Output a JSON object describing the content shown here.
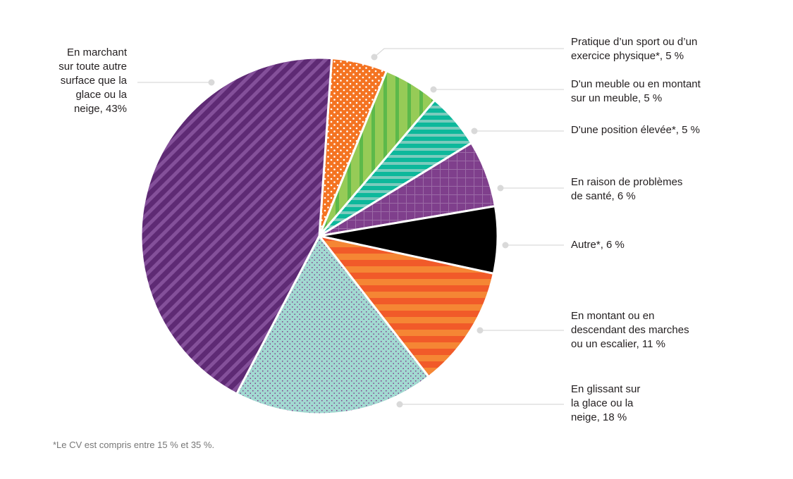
{
  "chart_data": {
    "type": "pie",
    "start_angle_deg": 4,
    "direction": "clockwise",
    "slices": [
      {
        "label": "Pratique d’un sport ou d’un\nexercice physique*, 5 %",
        "value": 5,
        "color": "#f47321",
        "pattern": "dots-white"
      },
      {
        "label": "D'un meuble ou en montant\nsur un meuble, 5 %",
        "value": 5,
        "color": "#96cb57",
        "pattern": "vertical-stripes",
        "color2": "#5cb94a"
      },
      {
        "label": "D'une position élevée*, 5 %",
        "value": 5,
        "color": "#0db89b",
        "pattern": "horizontal-stripes",
        "color2": "#7acbbd"
      },
      {
        "label": "En raison de problèmes\nde santé, 6 %",
        "value": 6,
        "color": "#7f3f8c",
        "pattern": "grid",
        "color2": "#9b6aa6"
      },
      {
        "label": "Autre*, 6 %",
        "value": 6,
        "color": "#000000",
        "pattern": "solid"
      },
      {
        "label": "En montant ou en\ndescendant des marches\nou un escalier, 11 %",
        "value": 11,
        "color": "#f15a29",
        "pattern": "horizontal-stripes",
        "color2": "#f58634"
      },
      {
        "label": "En glissant sur\nla glace ou la\nneige, 18 %",
        "value": 18,
        "color": "#a2d9d1",
        "pattern": "dots-purple",
        "color2": "#7f3f8c"
      },
      {
        "label": "En marchant\nsur toute autre\nsurface que la\nglace ou la\nneige, 43%",
        "value": 43,
        "color": "#5e2a74",
        "pattern": "diagonal-stripes",
        "color2": "#84509a"
      }
    ]
  },
  "footnote": "*Le CV est compris entre 15 % et 35 %."
}
